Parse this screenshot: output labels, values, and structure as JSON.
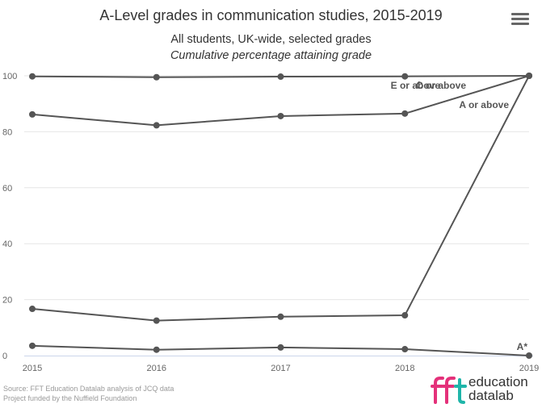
{
  "title": "A-Level grades in communication studies, 2015-2019",
  "subtitle_line1": "All students, UK-wide, selected grades",
  "subtitle_line2": "Cumulative percentage attaining grade",
  "credits": {
    "line1": "Source: FFT Education Datalab analysis of JCQ data",
    "line2": "Project funded by the Nuffield Foundation"
  },
  "logo": {
    "mark": "fft",
    "line1": "education",
    "line2": "datalab"
  },
  "menu": {
    "icon": "hamburger-menu-icon"
  },
  "colors": {
    "series": "#555555",
    "grid": "#e6e6e6",
    "axis": "#ccd6eb",
    "text": "#666666",
    "logo_pink": "#e4317a",
    "logo_teal": "#1fb5a9"
  },
  "chart_data": {
    "type": "line",
    "x": [
      2015,
      2016,
      2017,
      2018,
      2019
    ],
    "xlabel": "",
    "ylabel": "",
    "ylim": [
      0,
      100
    ],
    "yticks": [
      0,
      20,
      40,
      60,
      80,
      100
    ],
    "grid": true,
    "legend": "none",
    "series": [
      {
        "name": "E or above",
        "values": [
          99.8,
          99.5,
          99.7,
          99.8,
          100
        ]
      },
      {
        "name": "C or above",
        "values": [
          86.2,
          82.3,
          85.6,
          86.5,
          100
        ]
      },
      {
        "name": "A or above",
        "values": [
          16.7,
          12.5,
          13.9,
          14.4,
          100
        ]
      },
      {
        "name": "A*",
        "values": [
          3.5,
          2.1,
          2.9,
          2.3,
          0
        ]
      }
    ]
  }
}
